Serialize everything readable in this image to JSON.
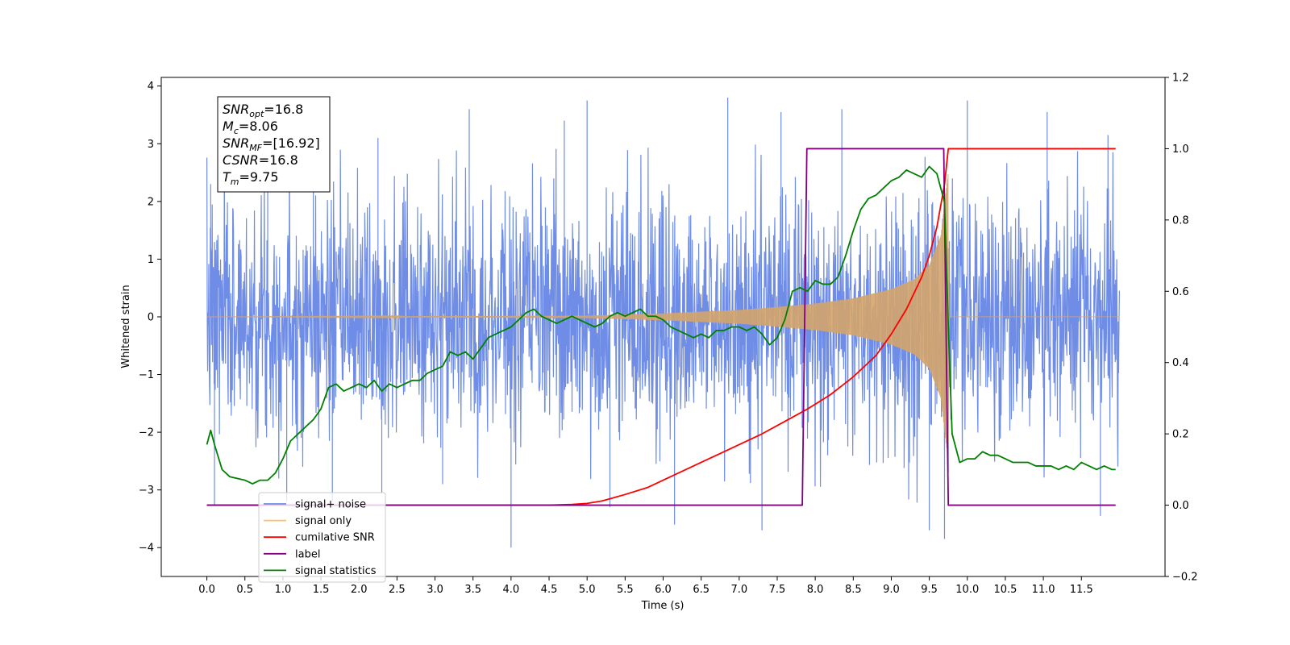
{
  "chart_data": {
    "type": "line",
    "xlabel": "Time (s)",
    "ylabel": "Whitened strain",
    "xlim": [
      -0.6,
      12.6
    ],
    "ylim": [
      -4.5,
      4.15
    ],
    "y2lim": [
      -0.2,
      1.2
    ],
    "x_ticks": [
      "0.0",
      "0.5",
      "1.0",
      "1.5",
      "2.0",
      "2.5",
      "3.0",
      "3.5",
      "4.0",
      "4.5",
      "5.0",
      "5.5",
      "6.0",
      "6.5",
      "7.0",
      "7.5",
      "8.0",
      "8.5",
      "9.0",
      "9.5",
      "10.0",
      "10.5",
      "11.0",
      "11.5"
    ],
    "y_ticks": [
      "−4",
      "−3",
      "−2",
      "−1",
      "0",
      "1",
      "2",
      "3",
      "4"
    ],
    "y2_ticks": [
      "−0.2",
      "0.0",
      "0.2",
      "0.4",
      "0.6",
      "0.8",
      "1.0",
      "1.2"
    ],
    "grid": false,
    "legend_position": "lower-left",
    "infobox": {
      "lines": [
        {
          "base": "SNR",
          "sub": "opt",
          "value": "=16.8"
        },
        {
          "base": "M",
          "sub": "c",
          "value": "=8.06"
        },
        {
          "base": "SNR",
          "sub": "MF",
          "value": "=[16.92]"
        },
        {
          "base": "CSNR",
          "sub": "",
          "value": "=16.8"
        },
        {
          "base": "T",
          "sub": "m",
          "value": "=9.75"
        }
      ]
    },
    "legend": [
      {
        "label": "signal+ noise",
        "color": "#6f8de6"
      },
      {
        "label": "signal only",
        "color": "#ffc061"
      },
      {
        "label": "cumilative SNR",
        "color": "#ff0000"
      },
      {
        "label": "label",
        "color": "#800080"
      },
      {
        "label": "signal statistics",
        "color": "#008000"
      }
    ],
    "series": [
      {
        "name": "signal+ noise",
        "axis": "left",
        "color": "#6f8de6",
        "t_range": [
          0.0,
          12.0
        ],
        "noise_sigma": 1.0,
        "spike_samples": [
          [
            0.05,
            2.3
          ],
          [
            0.1,
            -3.25
          ],
          [
            0.8,
            3.2
          ],
          [
            1.05,
            -3.2
          ],
          [
            1.4,
            3.1
          ],
          [
            1.65,
            -3.2
          ],
          [
            2.25,
            3.1
          ],
          [
            2.3,
            -3.05
          ],
          [
            3.1,
            -2.9
          ],
          [
            3.45,
            3.6
          ],
          [
            4.0,
            -4.0
          ],
          [
            4.7,
            3.4
          ],
          [
            5.0,
            3.75
          ],
          [
            5.3,
            -3.3
          ],
          [
            6.15,
            -3.6
          ],
          [
            6.85,
            3.8
          ],
          [
            7.3,
            -3.7
          ],
          [
            7.55,
            3.55
          ],
          [
            8.35,
            3.6
          ],
          [
            9.5,
            -3.7
          ],
          [
            9.7,
            -3.85
          ],
          [
            10.0,
            3.75
          ],
          [
            11.05,
            3.55
          ],
          [
            11.75,
            -3.45
          ],
          [
            11.85,
            3.15
          ]
        ]
      },
      {
        "name": "signal only",
        "axis": "left",
        "color": "#d4a46a",
        "t_range": [
          0.0,
          12.0
        ],
        "merger_time": 9.75,
        "envelope": [
          [
            0.0,
            0.0
          ],
          [
            5.0,
            0.02
          ],
          [
            6.0,
            0.06
          ],
          [
            7.0,
            0.12
          ],
          [
            7.5,
            0.17
          ],
          [
            8.0,
            0.23
          ],
          [
            8.5,
            0.32
          ],
          [
            9.0,
            0.48
          ],
          [
            9.3,
            0.65
          ],
          [
            9.5,
            0.9
          ],
          [
            9.65,
            1.4
          ],
          [
            9.72,
            2.2
          ],
          [
            9.75,
            2.5
          ],
          [
            9.76,
            0.0
          ],
          [
            12.0,
            0.0
          ]
        ]
      },
      {
        "name": "cumilative SNR",
        "axis": "right",
        "color": "#ff0000",
        "x": [
          0.0,
          4.5,
          4.8,
          5.0,
          5.2,
          5.5,
          5.8,
          6.0,
          6.3,
          6.6,
          7.0,
          7.3,
          7.6,
          7.9,
          8.2,
          8.5,
          8.8,
          9.0,
          9.2,
          9.4,
          9.5,
          9.6,
          9.65,
          9.7,
          9.75,
          11.95
        ],
        "values": [
          0.0,
          0.0,
          0.002,
          0.005,
          0.012,
          0.03,
          0.05,
          0.07,
          0.1,
          0.13,
          0.17,
          0.2,
          0.235,
          0.27,
          0.31,
          0.36,
          0.42,
          0.48,
          0.55,
          0.64,
          0.7,
          0.78,
          0.84,
          0.9,
          1.0,
          1.0
        ]
      },
      {
        "name": "label",
        "axis": "right",
        "color": "#800080",
        "x": [
          0.0,
          7.83,
          7.89,
          9.69,
          9.75,
          11.95
        ],
        "values": [
          0.0,
          0.0,
          1.0,
          1.0,
          0.0,
          0.0
        ]
      },
      {
        "name": "signal statistics",
        "axis": "right",
        "color": "#008000",
        "x": [
          0.0,
          0.05,
          0.1,
          0.2,
          0.3,
          0.5,
          0.6,
          0.7,
          0.8,
          0.9,
          1.0,
          1.1,
          1.2,
          1.3,
          1.4,
          1.5,
          1.6,
          1.7,
          1.8,
          1.9,
          2.0,
          2.1,
          2.2,
          2.3,
          2.4,
          2.5,
          2.6,
          2.7,
          2.8,
          2.9,
          3.0,
          3.1,
          3.2,
          3.3,
          3.4,
          3.5,
          3.6,
          3.7,
          3.8,
          3.9,
          4.0,
          4.1,
          4.2,
          4.3,
          4.4,
          4.5,
          4.6,
          4.7,
          4.8,
          4.9,
          5.0,
          5.1,
          5.2,
          5.3,
          5.4,
          5.5,
          5.6,
          5.7,
          5.8,
          5.9,
          6.0,
          6.1,
          6.2,
          6.3,
          6.4,
          6.5,
          6.6,
          6.7,
          6.8,
          6.9,
          7.0,
          7.1,
          7.2,
          7.3,
          7.4,
          7.5,
          7.6,
          7.7,
          7.8,
          7.9,
          8.0,
          8.1,
          8.2,
          8.3,
          8.4,
          8.5,
          8.6,
          8.7,
          8.8,
          8.9,
          9.0,
          9.1,
          9.2,
          9.3,
          9.4,
          9.5,
          9.6,
          9.7,
          9.75,
          9.8,
          9.9,
          10.0,
          10.1,
          10.2,
          10.3,
          10.4,
          10.5,
          10.6,
          10.7,
          10.8,
          10.9,
          11.0,
          11.1,
          11.2,
          11.3,
          11.4,
          11.5,
          11.6,
          11.7,
          11.8,
          11.9,
          11.95
        ],
        "values": [
          0.17,
          0.21,
          0.17,
          0.1,
          0.08,
          0.07,
          0.06,
          0.07,
          0.07,
          0.09,
          0.13,
          0.18,
          0.2,
          0.22,
          0.24,
          0.27,
          0.33,
          0.34,
          0.32,
          0.33,
          0.34,
          0.33,
          0.35,
          0.32,
          0.34,
          0.33,
          0.34,
          0.35,
          0.35,
          0.37,
          0.38,
          0.39,
          0.43,
          0.42,
          0.43,
          0.41,
          0.44,
          0.47,
          0.48,
          0.49,
          0.5,
          0.52,
          0.54,
          0.55,
          0.53,
          0.52,
          0.51,
          0.52,
          0.53,
          0.52,
          0.51,
          0.5,
          0.51,
          0.53,
          0.54,
          0.53,
          0.54,
          0.55,
          0.53,
          0.53,
          0.52,
          0.5,
          0.49,
          0.48,
          0.47,
          0.48,
          0.47,
          0.49,
          0.49,
          0.5,
          0.5,
          0.49,
          0.5,
          0.48,
          0.45,
          0.47,
          0.52,
          0.6,
          0.61,
          0.6,
          0.63,
          0.62,
          0.62,
          0.64,
          0.7,
          0.77,
          0.83,
          0.86,
          0.87,
          0.89,
          0.91,
          0.92,
          0.94,
          0.93,
          0.92,
          0.95,
          0.93,
          0.85,
          0.5,
          0.2,
          0.12,
          0.13,
          0.13,
          0.15,
          0.14,
          0.14,
          0.13,
          0.12,
          0.12,
          0.12,
          0.11,
          0.11,
          0.11,
          0.1,
          0.11,
          0.1,
          0.12,
          0.11,
          0.1,
          0.11,
          0.1,
          0.1
        ]
      }
    ]
  }
}
